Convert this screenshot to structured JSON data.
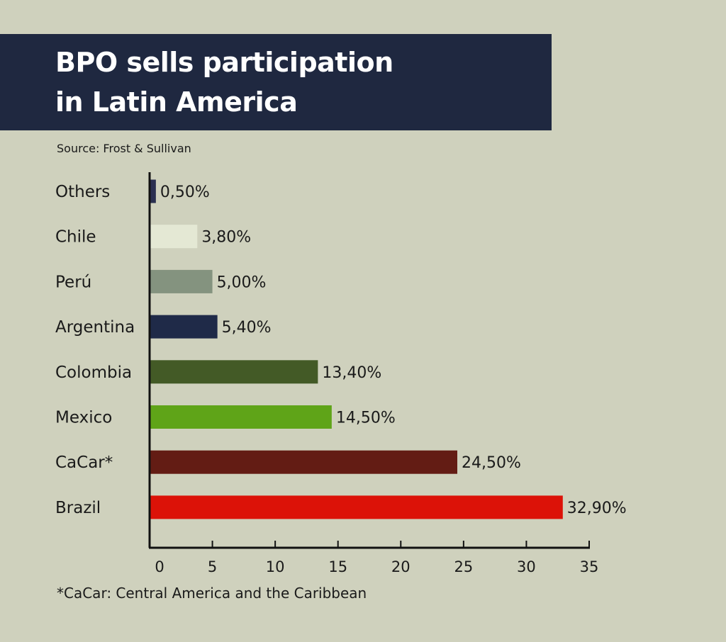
{
  "title_lines": [
    "BPO sells participation",
    "in Latin America"
  ],
  "source": "Source: Frost & Sullivan",
  "footnote": "*CaCar: Central America and the Caribbean",
  "colors": {
    "background": "#cfd1bd",
    "title_box": "#1f2840",
    "axis": "#111111"
  },
  "chart_data": {
    "type": "bar",
    "orientation": "horizontal",
    "title": "BPO sells participation in Latin America",
    "xlabel": "",
    "ylabel": "",
    "xlim": [
      0,
      35
    ],
    "x_ticks": [
      0,
      5,
      10,
      15,
      20,
      25,
      30,
      35
    ],
    "grid": false,
    "categories": [
      "Others",
      "Chile",
      "Perú",
      "Argentina",
      "Colombia",
      "Mexico",
      "CaCar*",
      "Brazil"
    ],
    "values": [
      0.5,
      3.8,
      5.0,
      5.4,
      13.4,
      14.5,
      24.5,
      32.9
    ],
    "value_labels": [
      "0,50%",
      "3,80%",
      "5,00%",
      "5,40%",
      "13,40%",
      "14,50%",
      "24,50%",
      "32,90%"
    ],
    "bar_colors": [
      "#2a2f50",
      "#e4e8d4",
      "#84937f",
      "#1f2a48",
      "#435a26",
      "#5fa418",
      "#631c14",
      "#dc1208"
    ]
  }
}
